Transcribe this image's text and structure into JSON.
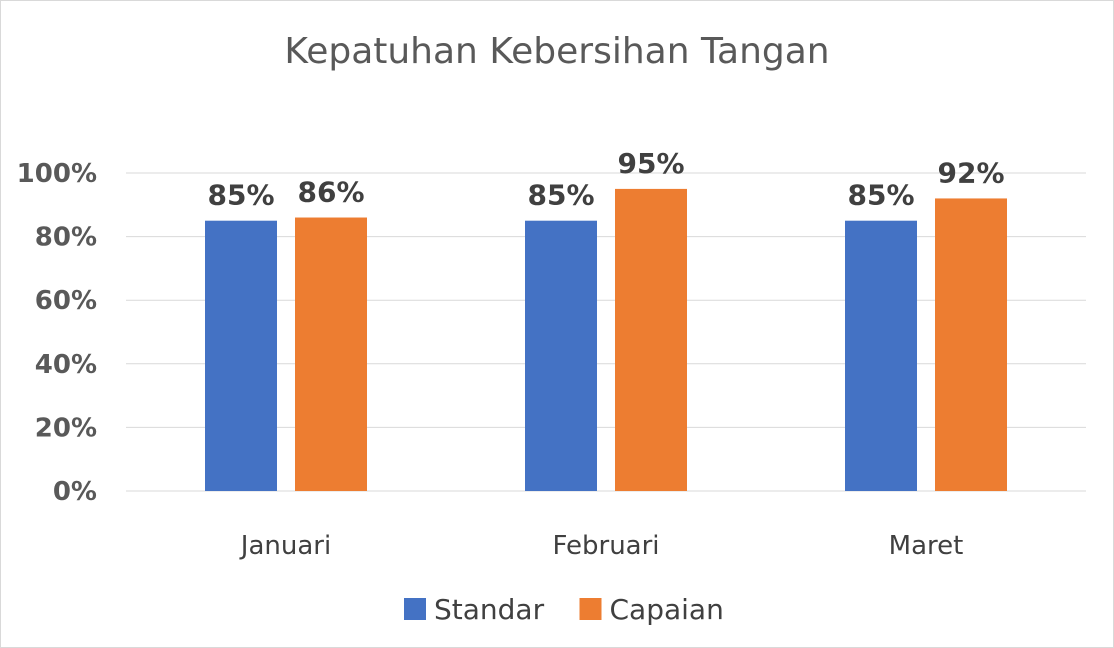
{
  "chart_data": {
    "type": "bar",
    "title": "Kepatuhan Kebersihan Tangan",
    "categories": [
      "Januari",
      "Februari",
      "Maret"
    ],
    "series": [
      {
        "name": "Standar",
        "values": [
          85,
          85,
          85
        ],
        "labels": [
          "85%",
          "85%",
          "85%"
        ],
        "color": "#4472C4"
      },
      {
        "name": "Capaian",
        "values": [
          86,
          95,
          92
        ],
        "labels": [
          "86%",
          "95%",
          "92%"
        ],
        "color": "#ED7D31"
      }
    ],
    "ylim": [
      0,
      100
    ],
    "yticks": [
      0,
      20,
      40,
      60,
      80,
      100
    ],
    "ytick_labels": [
      "0%",
      "20%",
      "40%",
      "60%",
      "80%",
      "100%"
    ],
    "xlabel": "",
    "ylabel": "",
    "grid": true,
    "legend_position": "bottom"
  }
}
